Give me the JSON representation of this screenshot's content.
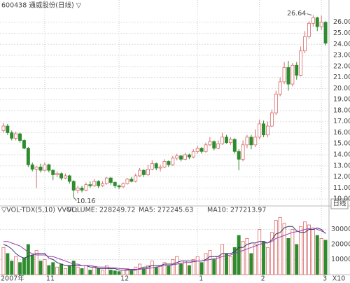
{
  "chart_data": [
    {
      "type": "candlestick",
      "title": "600438 通威股份(日线) ▽",
      "period_label": "日线",
      "annotations": [
        "26.64",
        "10.16"
      ],
      "up_color": "#d86a6a",
      "down_color": "#2e8b2e",
      "grid": true,
      "ylim": [
        9.5,
        27.25
      ],
      "yticks": [
        {
          "value": 10,
          "label": "10.00"
        },
        {
          "value": 11,
          "label": "11.00"
        },
        {
          "value": 12,
          "label": "12.00"
        },
        {
          "value": 13,
          "label": "13.00"
        },
        {
          "value": 14,
          "label": "14.00"
        },
        {
          "value": 15,
          "label": "15.00"
        },
        {
          "value": 16,
          "label": "16.00"
        },
        {
          "value": 17,
          "label": "17.00"
        },
        {
          "value": 18,
          "label": "18.00"
        },
        {
          "value": 19,
          "label": "19.00"
        },
        {
          "value": 20,
          "label": "20.00"
        },
        {
          "value": 21,
          "label": "21.00"
        },
        {
          "value": 22,
          "label": "22.00"
        },
        {
          "value": 23,
          "label": "23.00"
        },
        {
          "value": 24,
          "label": "24.00"
        },
        {
          "value": 25,
          "label": "25.00"
        },
        {
          "value": 26,
          "label": "26.00"
        }
      ],
      "open": [
        16.2,
        16.6,
        16.0,
        15.5,
        15.9,
        15.3,
        14.6,
        13.1,
        12.7,
        12.9,
        12.6,
        13.1,
        12.6,
        12.2,
        12.3,
        11.9,
        12.1,
        11.6,
        10.8,
        11.0,
        10.8,
        11.3,
        11.2,
        11.6,
        11.2,
        11.4,
        11.9,
        11.5,
        11.2,
        11.1,
        11.4,
        11.8,
        11.6,
        12.1,
        12.6,
        12.2,
        12.7,
        13.2,
        12.8,
        12.9,
        13.4,
        13.1,
        13.7,
        13.9,
        13.6,
        14.0,
        13.8,
        14.3,
        14.6,
        14.3,
        14.9,
        15.2,
        14.6,
        15.0,
        15.6,
        15.1,
        15.4,
        14.3,
        13.6,
        14.9,
        15.6,
        14.9,
        15.6,
        16.8,
        15.8,
        16.6,
        17.8,
        19.5,
        20.6,
        21.9,
        20.4,
        22.1,
        21.2,
        23.4,
        24.7,
        25.9,
        26.4,
        25.6,
        26.0
      ],
      "high": [
        16.9,
        16.8,
        16.2,
        16.1,
        16.0,
        15.4,
        14.7,
        13.3,
        13.0,
        13.2,
        13.3,
        13.2,
        12.7,
        12.5,
        12.4,
        12.3,
        12.2,
        11.7,
        11.2,
        11.2,
        11.5,
        11.6,
        11.8,
        11.7,
        11.6,
        12.0,
        12.0,
        11.6,
        11.3,
        11.5,
        11.9,
        12.0,
        12.3,
        12.8,
        12.7,
        13.1,
        13.5,
        13.3,
        13.1,
        13.6,
        13.5,
        13.9,
        14.1,
        14.0,
        14.2,
        14.1,
        14.5,
        14.8,
        14.7,
        15.1,
        15.6,
        15.3,
        15.3,
        16.0,
        15.8,
        15.6,
        15.5,
        14.5,
        15.3,
        15.8,
        15.8,
        16.3,
        17.2,
        17.1,
        17.0,
        18.1,
        19.8,
        21.0,
        22.4,
        22.5,
        22.3,
        22.4,
        23.8,
        25.2,
        26.1,
        26.64,
        26.5,
        26.6,
        26.1
      ],
      "low": [
        16.0,
        15.8,
        15.3,
        15.3,
        15.1,
        14.5,
        12.9,
        12.5,
        11.0,
        12.4,
        12.5,
        12.4,
        11.7,
        12.0,
        11.7,
        11.8,
        11.4,
        10.16,
        10.5,
        10.6,
        10.7,
        11.0,
        11.1,
        11.0,
        11.1,
        11.3,
        11.3,
        11.0,
        10.9,
        11.0,
        11.3,
        11.5,
        11.5,
        12.0,
        12.0,
        12.1,
        12.6,
        12.6,
        12.5,
        12.8,
        12.9,
        13.0,
        13.5,
        13.4,
        13.5,
        13.6,
        13.7,
        14.1,
        14.1,
        14.2,
        14.8,
        14.4,
        14.5,
        14.9,
        15.0,
        14.9,
        14.1,
        12.6,
        13.4,
        14.6,
        14.5,
        14.7,
        15.4,
        15.6,
        15.6,
        16.5,
        17.6,
        19.3,
        20.4,
        19.8,
        20.2,
        20.8,
        21.1,
        23.2,
        24.5,
        25.6,
        25.2,
        25.3,
        23.9
      ],
      "close": [
        16.6,
        16.0,
        15.5,
        15.9,
        15.3,
        14.6,
        13.1,
        12.7,
        12.9,
        12.6,
        13.1,
        12.6,
        12.2,
        12.3,
        11.9,
        12.1,
        11.6,
        10.8,
        11.0,
        10.8,
        11.3,
        11.2,
        11.6,
        11.2,
        11.4,
        11.9,
        11.5,
        11.2,
        11.1,
        11.4,
        11.8,
        11.6,
        12.1,
        12.6,
        12.2,
        12.7,
        13.2,
        12.8,
        12.9,
        13.4,
        13.1,
        13.7,
        13.9,
        13.6,
        14.0,
        13.8,
        14.3,
        14.6,
        14.3,
        14.9,
        15.2,
        14.6,
        15.0,
        15.6,
        15.1,
        15.4,
        14.3,
        13.6,
        14.9,
        15.6,
        14.9,
        15.6,
        16.8,
        15.8,
        16.6,
        17.8,
        19.5,
        20.6,
        21.9,
        20.4,
        22.1,
        21.2,
        23.4,
        24.7,
        25.9,
        26.4,
        25.6,
        26.0,
        24.1
      ]
    },
    {
      "type": "bar",
      "indicator": "▽VOL-TDX(5,10) VVOL:",
      "value_label": "VOLUME: 228249.72",
      "value_label_color": "#2a9db0",
      "scale_label": "X10",
      "grid": true,
      "categories": [
        "2007年",
        null,
        null,
        null,
        null,
        null,
        null,
        null,
        null,
        null,
        "11",
        null,
        null,
        null,
        null,
        null,
        null,
        null,
        null,
        null,
        null,
        null,
        null,
        null,
        null,
        null,
        null,
        null,
        "12",
        null,
        null,
        null,
        null,
        null,
        null,
        null,
        null,
        null,
        null,
        null,
        null,
        null,
        null,
        null,
        null,
        null,
        null,
        "1",
        null,
        null,
        null,
        null,
        null,
        null,
        null,
        null,
        null,
        null,
        null,
        null,
        null,
        null,
        "2",
        null,
        null,
        null,
        null,
        null,
        null,
        null,
        null,
        null,
        null,
        null,
        null,
        null,
        null,
        "3",
        null
      ],
      "ylim": [
        0,
        40000
      ],
      "yticks": [
        10000,
        20000,
        30000
      ],
      "values": [
        18000,
        14000,
        9000,
        12000,
        8000,
        11000,
        20000,
        13000,
        16000,
        9000,
        10000,
        6000,
        8000,
        5000,
        7000,
        4000,
        6000,
        9000,
        5000,
        4000,
        6000,
        3000,
        5000,
        4000,
        3000,
        6000,
        3000,
        2500,
        2000,
        3000,
        4000,
        2500,
        5000,
        7000,
        4000,
        6000,
        9000,
        5000,
        6000,
        8000,
        6000,
        10000,
        12000,
        7000,
        9000,
        6000,
        10000,
        12000,
        8000,
        14000,
        16000,
        10000,
        12000,
        20000,
        14000,
        12000,
        18000,
        26000,
        22000,
        24000,
        14000,
        20000,
        30000,
        22000,
        18000,
        28000,
        36000,
        38000,
        34000,
        24000,
        30000,
        20000,
        32000,
        35000,
        33000,
        30000,
        26000,
        24000,
        22825
      ],
      "series": [
        {
          "name": "MA5: 272245.63",
          "color": "#333366",
          "values": [
            20000,
            19000,
            17000,
            14000,
            12000,
            11000,
            12000,
            13000,
            14000,
            14000,
            14000,
            11000,
            10000,
            8000,
            7000,
            6000,
            6000,
            6000,
            6000,
            6000,
            6000,
            5000,
            5000,
            4000,
            4000,
            4000,
            4000,
            4000,
            3000,
            3000,
            3000,
            3000,
            3000,
            4000,
            5000,
            5000,
            6000,
            6000,
            6000,
            7000,
            7000,
            7000,
            8000,
            9000,
            9000,
            9000,
            9000,
            9000,
            9000,
            10000,
            12000,
            12000,
            12000,
            14000,
            14000,
            14000,
            15000,
            18000,
            18000,
            20000,
            21000,
            21000,
            22000,
            22000,
            21000,
            23000,
            27000,
            28000,
            31000,
            32000,
            32000,
            29000,
            28000,
            28000,
            30000,
            30000,
            31000,
            30000,
            27225
          ]
        },
        {
          "name": "MA10: 277213.97",
          "color": "#9b3fae",
          "values": [
            22000,
            22000,
            21000,
            20000,
            19000,
            17000,
            15000,
            14000,
            13000,
            13000,
            13000,
            12000,
            12000,
            11000,
            10000,
            9000,
            8000,
            7000,
            7000,
            6000,
            6000,
            6000,
            5500,
            5000,
            5000,
            5000,
            4500,
            4500,
            4000,
            4000,
            3500,
            3500,
            3500,
            3500,
            4000,
            4000,
            4500,
            5000,
            5500,
            6000,
            6000,
            6500,
            7000,
            7500,
            8000,
            8000,
            8500,
            9000,
            9000,
            9500,
            10000,
            10500,
            11000,
            12000,
            12500,
            13000,
            14000,
            15000,
            16000,
            17000,
            18000,
            19000,
            20000,
            21000,
            21000,
            22000,
            24000,
            25000,
            26000,
            27000,
            28000,
            28500,
            29000,
            30000,
            30500,
            31000,
            30000,
            29000,
            27721
          ]
        }
      ]
    }
  ]
}
